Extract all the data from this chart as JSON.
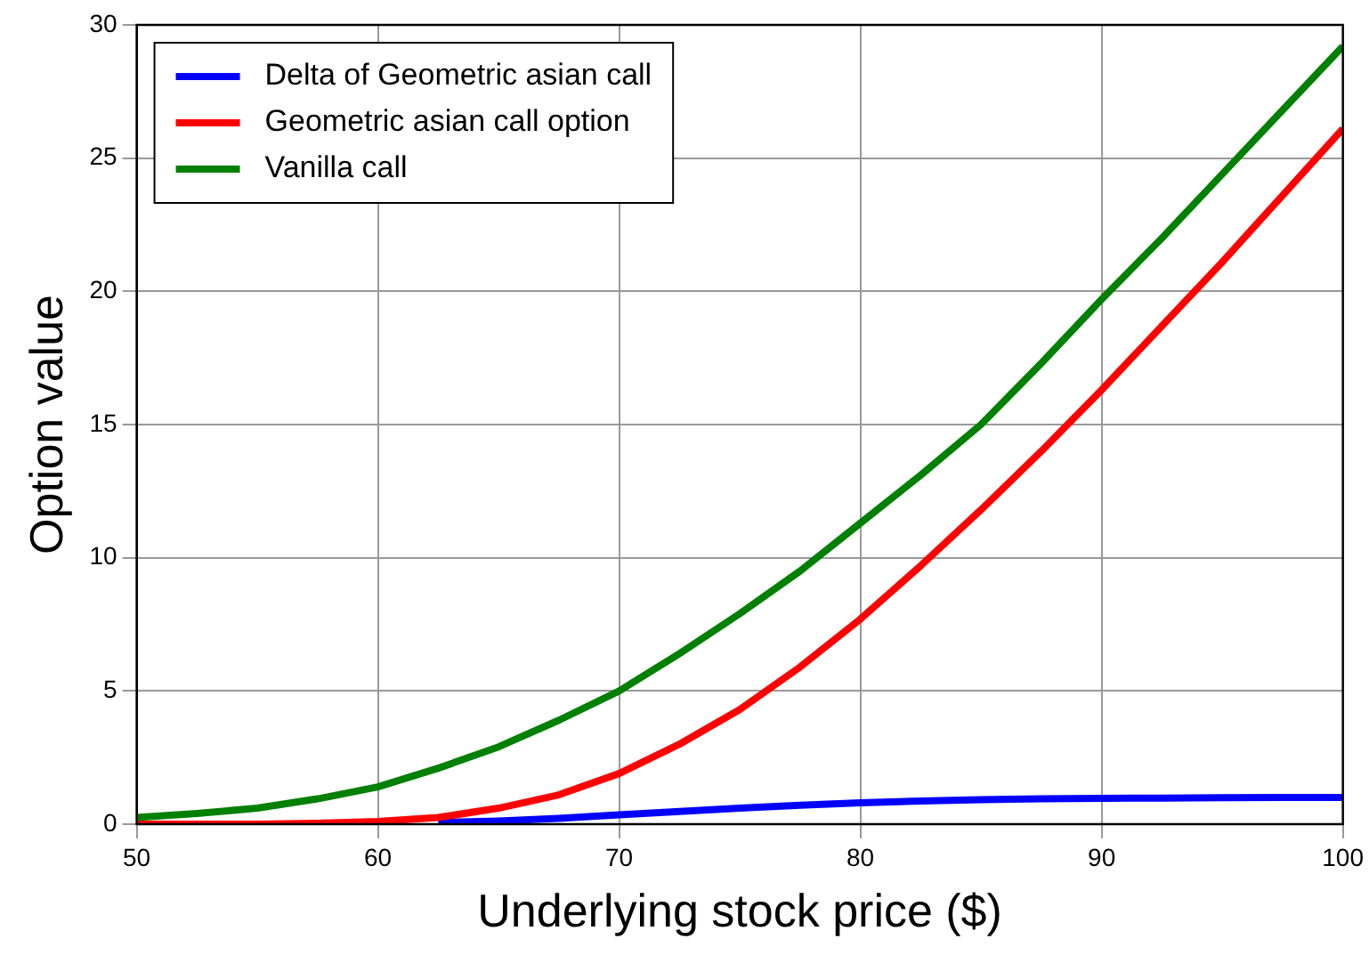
{
  "chart_data": {
    "type": "line",
    "xlabel": "Underlying stock price ($)",
    "ylabel": "Option value",
    "x": [
      50,
      52.5,
      55,
      57.5,
      60,
      62.5,
      65,
      67.5,
      70,
      72.5,
      75,
      77.5,
      80,
      82.5,
      85,
      87.5,
      90,
      92.5,
      95,
      97.5,
      100
    ],
    "series": [
      {
        "name": "Delta of Geometric asian call",
        "color": "#0000ff",
        "values": [
          null,
          null,
          null,
          null,
          null,
          0.06,
          0.12,
          0.22,
          0.35,
          0.48,
          0.6,
          0.71,
          0.8,
          0.87,
          0.92,
          0.95,
          0.97,
          0.98,
          0.99,
          1.0,
          1.0
        ]
      },
      {
        "name": "Geometric asian call option",
        "color": "#ff0000",
        "values": [
          0,
          0,
          0,
          0.03,
          0.1,
          0.25,
          0.6,
          1.1,
          1.9,
          3.0,
          4.3,
          5.9,
          7.7,
          9.7,
          11.8,
          14.0,
          16.3,
          18.7,
          21.1,
          23.6,
          26.1
        ]
      },
      {
        "name": "Vanilla call",
        "color": "#008000",
        "values": [
          0.25,
          0.4,
          0.6,
          0.95,
          1.4,
          2.1,
          2.9,
          3.9,
          5.0,
          6.4,
          7.9,
          9.5,
          11.3,
          13.1,
          15.0,
          17.3,
          19.7,
          22.0,
          24.4,
          26.8,
          29.2
        ]
      }
    ],
    "xlim": [
      50,
      100
    ],
    "xticks": [
      50,
      60,
      70,
      80,
      90,
      100
    ],
    "ylim": [
      0,
      30
    ],
    "yticks": [
      0,
      5,
      10,
      15,
      20,
      25,
      30
    ],
    "grid": true,
    "legend": "top left",
    "marker": "none",
    "line_style": "solid"
  }
}
